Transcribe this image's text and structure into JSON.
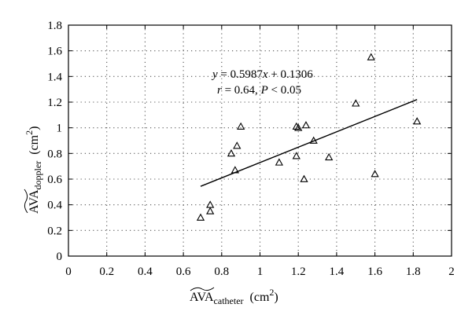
{
  "chart_data": {
    "type": "scatter",
    "xlim": [
      0,
      2
    ],
    "ylim": [
      0,
      1.8
    ],
    "x_ticks": [
      "0",
      "0.2",
      "0.4",
      "0.6",
      "0.8",
      "1",
      "1.2",
      "1.4",
      "1.6",
      "1.8",
      "2"
    ],
    "y_ticks": [
      "0",
      "0.2",
      "0.4",
      "0.6",
      "0.8",
      "1",
      "1.2",
      "1.4",
      "1.6",
      "1.8"
    ],
    "xlabel": {
      "main": "AVA",
      "sub": "catheter",
      "unit": "(cm",
      "unit_sup": "2",
      "unit_end": ")"
    },
    "ylabel": {
      "main": "AVA",
      "sub": "doppler",
      "unit": "(cm",
      "unit_sup": "2",
      "unit_end": ")"
    },
    "grid": true,
    "marker": "triangle",
    "points": [
      {
        "x": 0.69,
        "y": 0.3
      },
      {
        "x": 0.74,
        "y": 0.35
      },
      {
        "x": 0.74,
        "y": 0.4
      },
      {
        "x": 0.85,
        "y": 0.8
      },
      {
        "x": 0.87,
        "y": 0.67
      },
      {
        "x": 0.88,
        "y": 0.86
      },
      {
        "x": 0.9,
        "y": 1.01
      },
      {
        "x": 1.1,
        "y": 0.73
      },
      {
        "x": 1.19,
        "y": 0.78
      },
      {
        "x": 1.19,
        "y": 1.01
      },
      {
        "x": 1.2,
        "y": 1.0
      },
      {
        "x": 1.23,
        "y": 0.6
      },
      {
        "x": 1.24,
        "y": 1.02
      },
      {
        "x": 1.28,
        "y": 0.9
      },
      {
        "x": 1.36,
        "y": 0.77
      },
      {
        "x": 1.5,
        "y": 1.19
      },
      {
        "x": 1.58,
        "y": 1.55
      },
      {
        "x": 1.6,
        "y": 0.64
      },
      {
        "x": 1.82,
        "y": 1.05
      }
    ],
    "fit_line": {
      "slope": 0.5987,
      "intercept": 0.1306,
      "x_range": [
        0.69,
        1.82
      ]
    },
    "annotations": {
      "equation": {
        "y": "y",
        "eq": " = 0.5987",
        "x": "x",
        "rest": " + 0.1306"
      },
      "stats": {
        "r": "r",
        "r_val": " = 0.64, ",
        "p": "P",
        "p_val": " < 0.05"
      }
    }
  }
}
